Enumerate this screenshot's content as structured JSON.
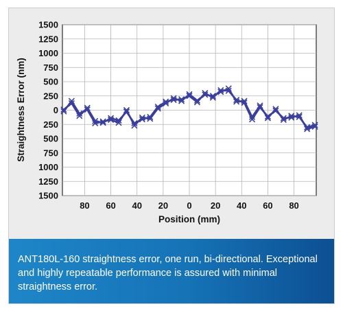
{
  "caption": "ANT180L-160 straightness error, one run, bi-directional. Exceptional and highly repeatable performance is assured with minimal straightness error.",
  "colors": {
    "series": "#3a3f9e",
    "caption_start": "#1e86c8",
    "caption_end": "#0d4f93",
    "panel": "#ececec"
  },
  "chart_data": {
    "type": "line",
    "title": "",
    "xlabel": "Position (mm)",
    "ylabel": "Straightness Error (nm)",
    "xlim": [
      -97,
      97
    ],
    "ylim": [
      -1500,
      1500
    ],
    "xticks": [
      -80,
      -60,
      -40,
      -20,
      0,
      20,
      40,
      60,
      80
    ],
    "xtick_labels": [
      "80",
      "60",
      "40",
      "20",
      "0",
      "20",
      "40",
      "60",
      "80"
    ],
    "yticks": [
      1500,
      1250,
      1000,
      750,
      500,
      250,
      0,
      -250,
      -500,
      -750,
      -1000,
      -1250,
      -1500
    ],
    "ytick_labels": [
      "1500",
      "1250",
      "1000",
      "750",
      "500",
      "250",
      "0",
      "250",
      "500",
      "750",
      "1000",
      "1250",
      "1500"
    ],
    "grid": true,
    "marker": "x",
    "series": [
      {
        "values_x": [
          -96,
          -90,
          -84,
          -78,
          -72,
          -66,
          -60,
          -54,
          -48,
          -42,
          -36,
          -30,
          -24,
          -18,
          -12,
          -6,
          0,
          6,
          12,
          18,
          24,
          30,
          36,
          42,
          48,
          54,
          60,
          66,
          72,
          78,
          84,
          90,
          96
        ],
        "values_y": [
          -20,
          160,
          -60,
          10,
          -230,
          -200,
          -170,
          -220,
          0,
          -270,
          -130,
          -150,
          30,
          120,
          210,
          160,
          280,
          170,
          270,
          250,
          320,
          380,
          150,
          160,
          -120,
          80,
          -140,
          20,
          -170,
          -100,
          -120,
          -300,
          -260
        ]
      },
      {
        "values_x": [
          -96,
          -90,
          -84,
          -78,
          -72,
          -66,
          -60,
          -54,
          -48,
          -42,
          -36,
          -30,
          -24,
          -18,
          -12,
          -6,
          0,
          6,
          12,
          18,
          24,
          30,
          36,
          42,
          48,
          54,
          60,
          66,
          72,
          78,
          84,
          90,
          96
        ],
        "values_y": [
          10,
          120,
          -100,
          40,
          -190,
          -220,
          -140,
          -180,
          -30,
          -230,
          -160,
          -120,
          60,
          150,
          180,
          190,
          250,
          140,
          300,
          220,
          350,
          340,
          180,
          130,
          -160,
          50,
          -110,
          -10,
          -140,
          -130,
          -90,
          -330,
          -290
        ]
      }
    ]
  }
}
